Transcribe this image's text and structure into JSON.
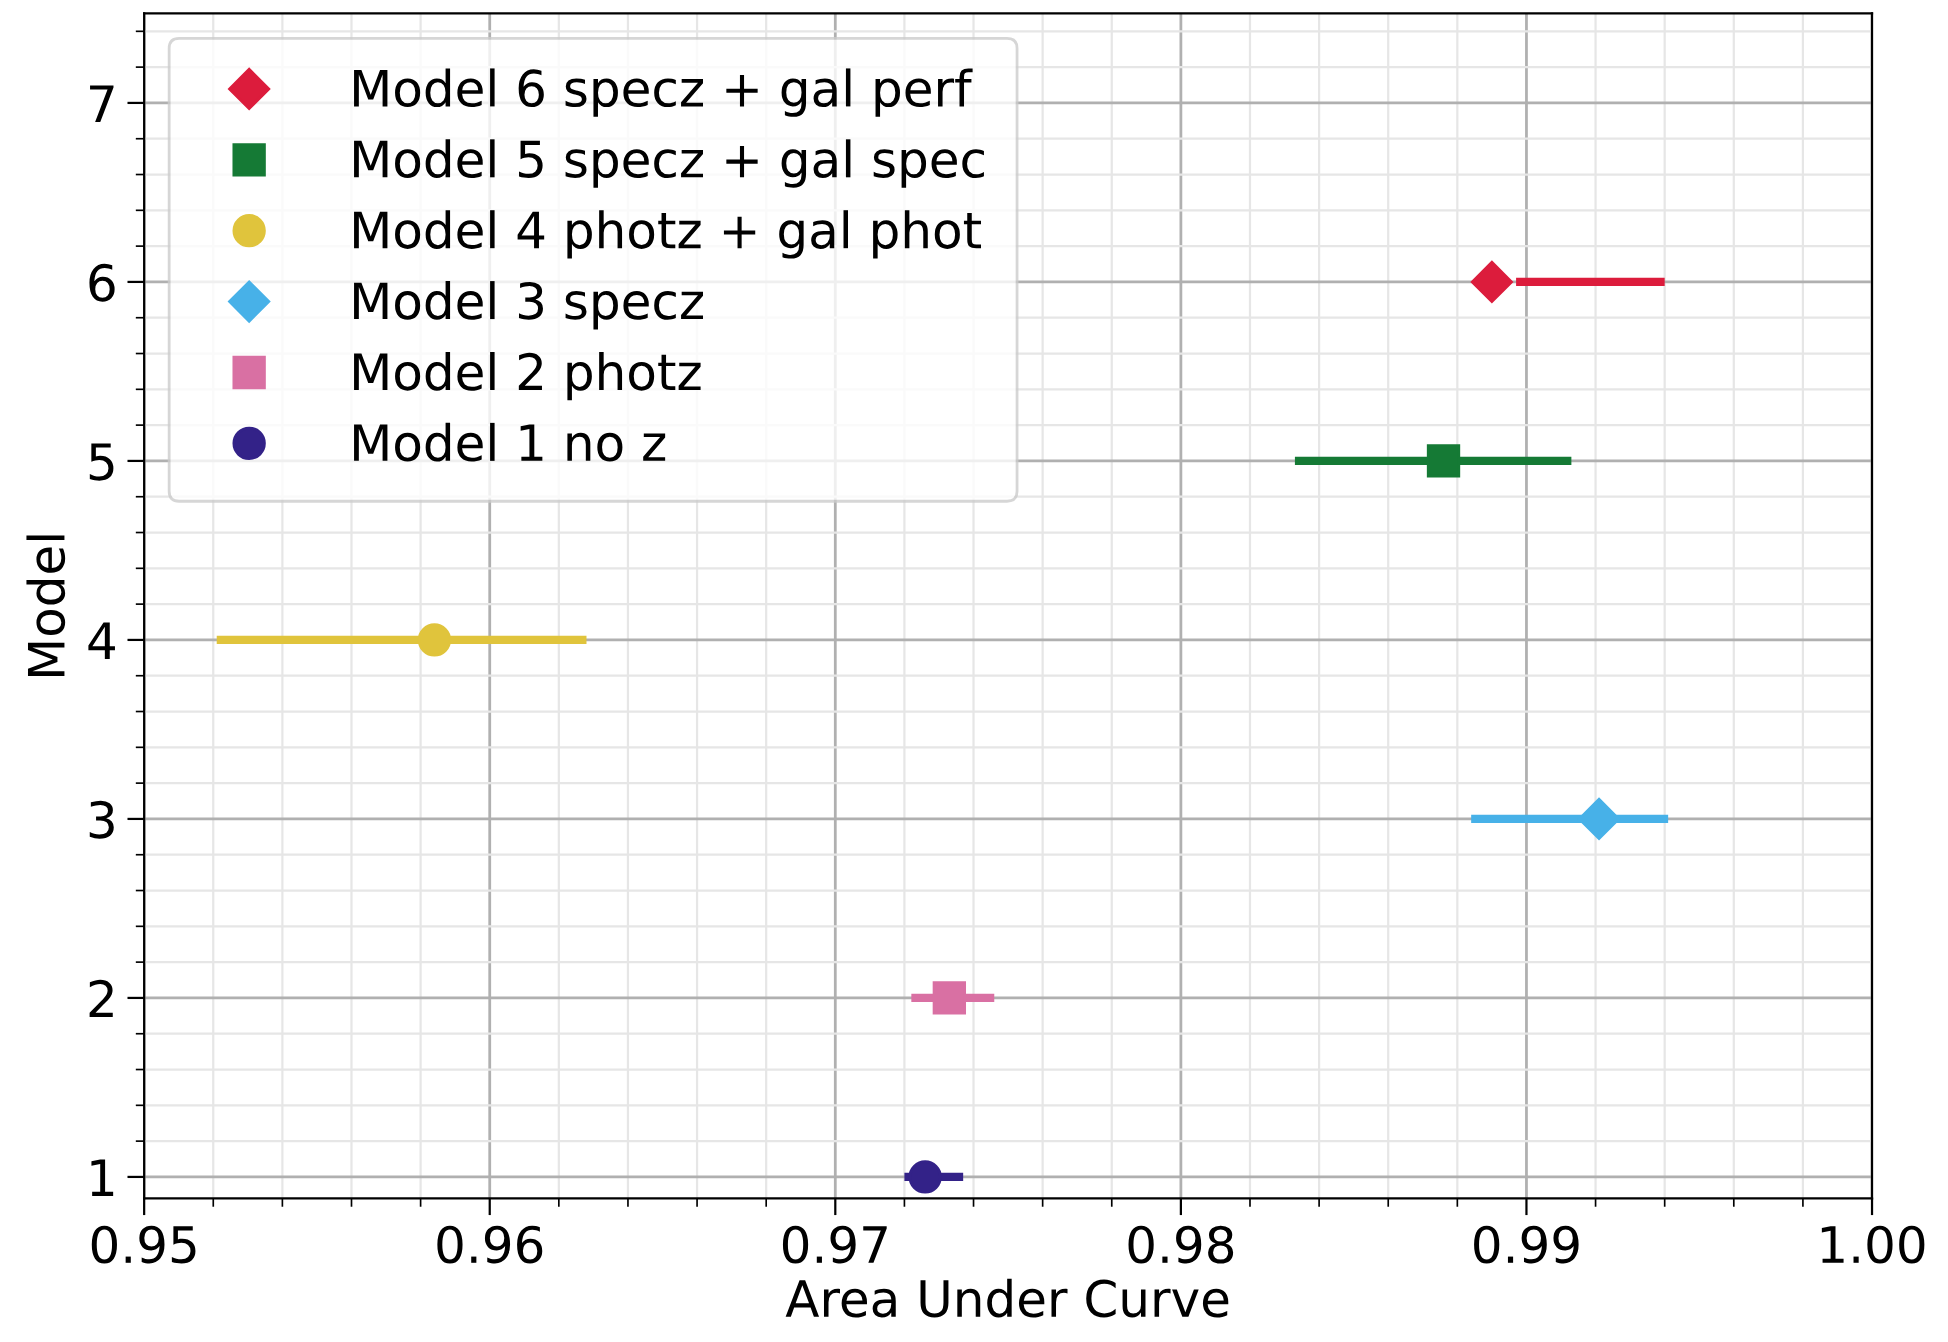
{
  "chart_data": {
    "type": "scatter",
    "xlabel": "Area Under Curve",
    "ylabel": "Model",
    "xlim": [
      0.95,
      1.0
    ],
    "xticks": [
      {
        "value": 0.95,
        "label": "0.95"
      },
      {
        "value": 0.96,
        "label": "0.96"
      },
      {
        "value": 0.97,
        "label": "0.97"
      },
      {
        "value": 0.98,
        "label": "0.98"
      },
      {
        "value": 0.99,
        "label": "0.99"
      },
      {
        "value": 1.0,
        "label": "1.00"
      }
    ],
    "ylim": [
      0.88,
      7.5
    ],
    "yticks": [
      1,
      2,
      3,
      4,
      5,
      6,
      7
    ],
    "grid": true,
    "legend": "top left",
    "series": [
      {
        "name": "Model 6 specz + gal perf",
        "color": "#dc1c3c",
        "marker": "diamond",
        "x": [
          0.989
        ],
        "values": [
          6
        ],
        "xerrors": [
          [
            0.9897,
            0.994
          ]
        ]
      },
      {
        "name": "Model 5 specz + gal spec",
        "color": "#157a35",
        "marker": "square",
        "x": [
          0.9876
        ],
        "values": [
          5
        ],
        "xerrors": [
          [
            0.9833,
            0.9913
          ]
        ]
      },
      {
        "name": "Model 4 photz + gal phot",
        "color": "#e0c43c",
        "marker": "circle",
        "x": [
          0.9584
        ],
        "values": [
          4
        ],
        "xerrors": [
          [
            0.9521,
            0.9628
          ]
        ]
      },
      {
        "name": "Model 3 specz",
        "color": "#47b1e8",
        "marker": "diamond",
        "x": [
          0.9921
        ],
        "values": [
          3
        ],
        "xerrors": [
          [
            0.9884,
            0.9941
          ]
        ]
      },
      {
        "name": "Model 2 photz",
        "color": "#d970a3",
        "marker": "square",
        "x": [
          0.9733
        ],
        "values": [
          2
        ],
        "xerrors": [
          [
            0.9722,
            0.9746
          ]
        ]
      },
      {
        "name": "Model 1 no z",
        "color": "#332288",
        "marker": "circle",
        "x": [
          0.9726
        ],
        "values": [
          1
        ],
        "xerrors": [
          [
            0.972,
            0.9737
          ]
        ]
      }
    ]
  }
}
